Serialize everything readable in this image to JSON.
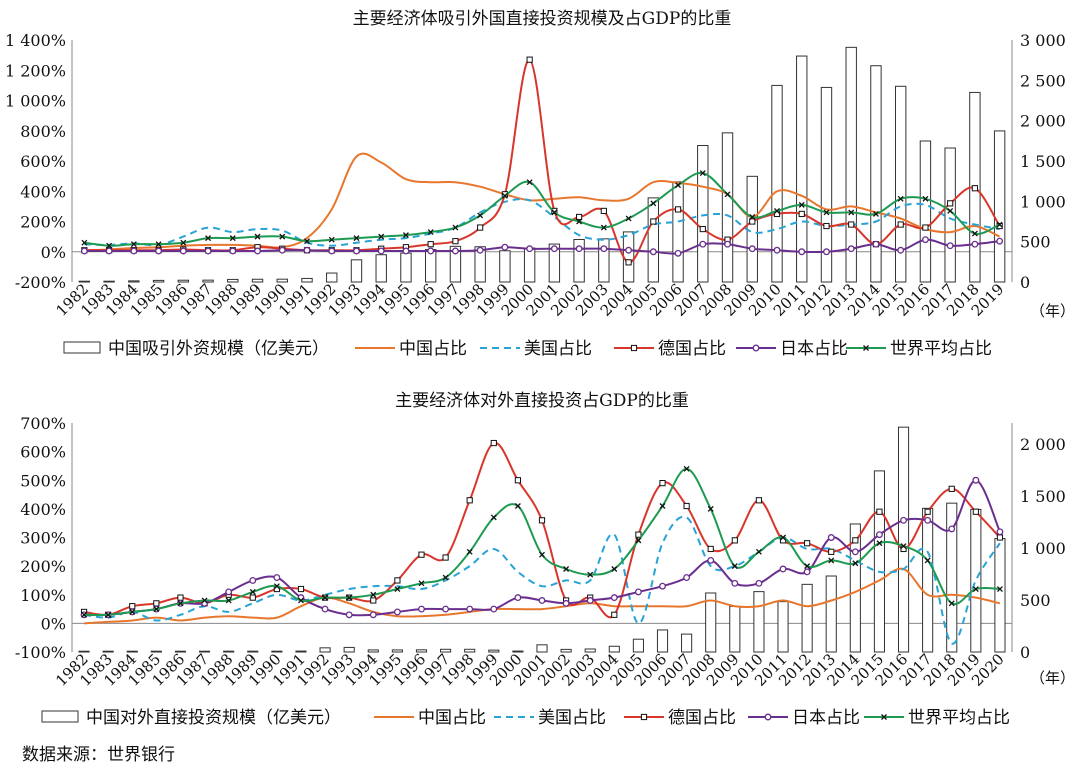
{
  "source_text": "数据来源：世界银行",
  "year_unit": "（年）",
  "colors": {
    "china": "#e8772e",
    "usa": "#29a3d6",
    "germany": "#d9362b",
    "japan": "#6a2f8e",
    "world": "#1e9a52",
    "bar": "#ffffff",
    "bar_stroke": "#333333"
  },
  "chart_data": [
    {
      "type": "bar+line",
      "title": "主要经济体吸引外国直接投资规模及占GDP的比重",
      "categories": [
        "1982",
        "1983",
        "1984",
        "1985",
        "1986",
        "1987",
        "1988",
        "1989",
        "1990",
        "1991",
        "1992",
        "1993",
        "1994",
        "1995",
        "1996",
        "1997",
        "1998",
        "1999",
        "2000",
        "2001",
        "2002",
        "2003",
        "2004",
        "2005",
        "2006",
        "2007",
        "2008",
        "2009",
        "2010",
        "2011",
        "2012",
        "2013",
        "2014",
        "2015",
        "2016",
        "2017",
        "2018",
        "2019"
      ],
      "left_axis": {
        "ylim": [
          -200,
          1400
        ],
        "ticks": [
          -200,
          0,
          200,
          400,
          600,
          800,
          1000,
          1200,
          1400
        ],
        "tick_labels": [
          "-200%",
          "0%",
          "200%",
          "400%",
          "600%",
          "800%",
          "1 000%",
          "1 200%",
          "1 400%"
        ]
      },
      "right_axis": {
        "ylim": [
          0,
          3000
        ],
        "ticks": [
          0,
          500,
          1000,
          1500,
          2000,
          2500,
          3000
        ],
        "tick_labels": [
          "0",
          "500",
          "1 000",
          "1 500",
          "2 000",
          "2 500",
          "3 000"
        ]
      },
      "bars": {
        "name": "中国吸引外资规模（亿美元）",
        "values": [
          4,
          9,
          14,
          20,
          22,
          23,
          32,
          34,
          35,
          44,
          111,
          275,
          338,
          358,
          402,
          442,
          437,
          387,
          421,
          470,
          527,
          535,
          621,
          1043,
          1241,
          1692,
          1849,
          1310,
          2437,
          2801,
          2412,
          2909,
          2681,
          2426,
          1748,
          1661,
          2350,
          1873
        ]
      },
      "series": [
        {
          "name": "中国占比",
          "key": "china",
          "style": "solid",
          "marker": "none",
          "values": [
            10,
            15,
            25,
            30,
            40,
            45,
            45,
            40,
            30,
            90,
            280,
            630,
            590,
            480,
            460,
            460,
            430,
            380,
            340,
            350,
            360,
            340,
            350,
            460,
            455,
            430,
            380,
            230,
            400,
            370,
            280,
            300,
            260,
            220,
            150,
            130,
            170,
            100
          ]
        },
        {
          "name": "美国占比",
          "key": "usa",
          "style": "dashed",
          "marker": "none",
          "values": [
            50,
            45,
            55,
            45,
            100,
            160,
            130,
            150,
            140,
            60,
            40,
            60,
            80,
            90,
            120,
            160,
            260,
            330,
            340,
            230,
            110,
            80,
            110,
            180,
            200,
            240,
            240,
            130,
            150,
            200,
            170,
            180,
            200,
            300,
            310,
            220,
            180,
            150
          ]
        },
        {
          "name": "德国占比",
          "key": "germany",
          "style": "solid",
          "marker": "square",
          "values": [
            10,
            10,
            10,
            10,
            15,
            10,
            10,
            30,
            20,
            10,
            10,
            10,
            20,
            30,
            50,
            70,
            160,
            380,
            1270,
            270,
            230,
            270,
            -70,
            200,
            280,
            150,
            80,
            200,
            250,
            250,
            170,
            180,
            50,
            180,
            160,
            320,
            420,
            170
          ]
        },
        {
          "name": "日本占比",
          "key": "japan",
          "style": "solid",
          "marker": "circle",
          "values": [
            5,
            5,
            5,
            5,
            5,
            5,
            5,
            5,
            10,
            10,
            5,
            5,
            5,
            5,
            5,
            5,
            10,
            30,
            20,
            20,
            20,
            20,
            10,
            0,
            -10,
            50,
            50,
            20,
            10,
            0,
            0,
            20,
            50,
            10,
            80,
            40,
            50,
            70
          ]
        },
        {
          "name": "世界平均占比",
          "key": "world",
          "style": "solid",
          "marker": "x",
          "values": [
            60,
            40,
            50,
            50,
            60,
            90,
            90,
            100,
            100,
            70,
            80,
            90,
            100,
            110,
            130,
            160,
            240,
            370,
            460,
            260,
            200,
            160,
            220,
            320,
            440,
            520,
            380,
            230,
            270,
            310,
            260,
            260,
            250,
            350,
            350,
            270,
            120,
            180
          ]
        }
      ]
    },
    {
      "type": "bar+line",
      "title": "主要经济体对外直接投资占GDP的比重",
      "categories": [
        "1982",
        "1983",
        "1984",
        "1985",
        "1986",
        "1987",
        "1988",
        "1989",
        "1990",
        "1991",
        "1992",
        "1993",
        "1994",
        "1995",
        "1996",
        "1997",
        "1998",
        "1999",
        "2000",
        "2001",
        "2002",
        "2003",
        "2004",
        "2005",
        "2006",
        "2007",
        "2008",
        "2009",
        "2010",
        "2011",
        "2012",
        "2013",
        "2014",
        "2015",
        "2016",
        "2017",
        "2018",
        "2019",
        "2020"
      ],
      "left_axis": {
        "ylim": [
          -100,
          700
        ],
        "ticks": [
          -100,
          0,
          100,
          200,
          300,
          400,
          500,
          600,
          700
        ],
        "tick_labels": [
          "-100%",
          "0%",
          "100%",
          "200%",
          "300%",
          "400%",
          "500%",
          "600%",
          "700%"
        ]
      },
      "right_axis": {
        "ylim": [
          0,
          2200
        ],
        "ticks": [
          0,
          500,
          1000,
          1500,
          2000
        ],
        "tick_labels": [
          "0",
          "500",
          "1 000",
          "1 500",
          "2 000"
        ]
      },
      "bars": {
        "name": "中国对外直接投资规模（亿美元）",
        "values": [
          0,
          1,
          1,
          6,
          4,
          6,
          8,
          8,
          8,
          9,
          40,
          44,
          20,
          20,
          21,
          26,
          26,
          18,
          9,
          69,
          25,
          29,
          55,
          123,
          212,
          172,
          567,
          438,
          580,
          484,
          650,
          730,
          1230,
          1740,
          2160,
          1380,
          1430,
          1370,
          1090
        ]
      },
      "series": [
        {
          "name": "中国占比",
          "key": "china",
          "style": "solid",
          "marker": "none",
          "values": [
            0,
            5,
            10,
            20,
            10,
            20,
            25,
            20,
            20,
            60,
            90,
            70,
            40,
            25,
            25,
            30,
            40,
            50,
            50,
            50,
            60,
            70,
            60,
            60,
            60,
            60,
            80,
            60,
            60,
            80,
            60,
            80,
            110,
            150,
            190,
            100,
            100,
            90,
            70
          ]
        },
        {
          "name": "美国占比",
          "key": "usa",
          "style": "dashed",
          "marker": "none",
          "values": [
            30,
            20,
            40,
            10,
            30,
            60,
            40,
            70,
            100,
            80,
            100,
            120,
            130,
            130,
            120,
            150,
            200,
            260,
            180,
            130,
            150,
            150,
            310,
            0,
            280,
            370,
            200,
            200,
            250,
            300,
            260,
            260,
            220,
            180,
            190,
            250,
            -70,
            150,
            280
          ]
        },
        {
          "name": "德国占比",
          "key": "germany",
          "style": "solid",
          "marker": "square",
          "values": [
            40,
            30,
            60,
            70,
            90,
            70,
            100,
            90,
            120,
            120,
            90,
            90,
            80,
            150,
            240,
            230,
            430,
            630,
            500,
            360,
            80,
            90,
            30,
            310,
            490,
            410,
            260,
            290,
            430,
            290,
            280,
            250,
            290,
            390,
            260,
            390,
            470,
            390,
            300
          ]
        },
        {
          "name": "日本占比",
          "key": "japan",
          "style": "solid",
          "marker": "circle",
          "values": [
            30,
            30,
            40,
            50,
            70,
            70,
            110,
            150,
            160,
            90,
            50,
            30,
            30,
            40,
            50,
            50,
            50,
            50,
            90,
            80,
            70,
            80,
            90,
            110,
            130,
            160,
            220,
            140,
            140,
            190,
            180,
            300,
            250,
            310,
            360,
            360,
            330,
            500,
            320
          ]
        },
        {
          "name": "世界平均占比",
          "key": "world",
          "style": "solid",
          "marker": "x",
          "values": [
            30,
            30,
            40,
            50,
            70,
            80,
            80,
            110,
            130,
            80,
            90,
            90,
            100,
            120,
            140,
            160,
            250,
            370,
            410,
            240,
            190,
            170,
            190,
            290,
            410,
            540,
            400,
            200,
            250,
            300,
            200,
            220,
            210,
            280,
            270,
            220,
            70,
            120,
            120
          ]
        }
      ]
    }
  ]
}
